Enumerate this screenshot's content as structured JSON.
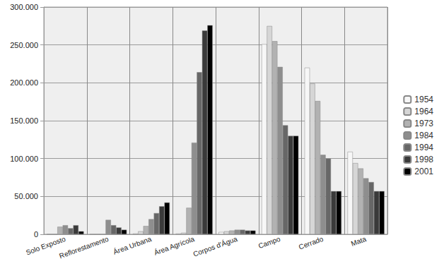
{
  "chart_data": {
    "type": "bar",
    "categories": [
      "Solo Exposto",
      "Reflorestamento",
      "Área Urbana",
      "Área Agrícola",
      "Corpos d'Água",
      "Campo",
      "Cerrado",
      "Mata"
    ],
    "series": [
      {
        "name": "1954",
        "color": "#f7f7f7",
        "values": [
          0,
          0,
          1000,
          1000,
          3000,
          251000,
          220000,
          109000
        ]
      },
      {
        "name": "1964",
        "color": "#d6d6d6",
        "values": [
          0,
          0,
          4000,
          2000,
          4000,
          275000,
          199000,
          94000
        ]
      },
      {
        "name": "1973",
        "color": "#b2b2b2",
        "values": [
          10000,
          0,
          11000,
          35000,
          5000,
          255000,
          176000,
          87000
        ]
      },
      {
        "name": "1984",
        "color": "#8e8e8e",
        "values": [
          12000,
          19000,
          20000,
          121000,
          6000,
          221000,
          105000,
          74000
        ]
      },
      {
        "name": "1994",
        "color": "#676767",
        "values": [
          8000,
          12000,
          28000,
          214000,
          6000,
          144000,
          100000,
          69000
        ]
      },
      {
        "name": "1998",
        "color": "#3a3a3a",
        "values": [
          12000,
          9000,
          37000,
          269000,
          5000,
          130000,
          57000,
          57000
        ]
      },
      {
        "name": "2001",
        "color": "#000000",
        "values": [
          4000,
          6000,
          42000,
          276000,
          5000,
          130000,
          57000,
          57000
        ]
      }
    ],
    "ylim": [
      0,
      300000
    ],
    "yticks": [
      0,
      {
        "value": 50000,
        "label": "50.000"
      },
      {
        "value": 100000,
        "label": "100.000"
      },
      {
        "value": 150000,
        "label": "150.000"
      },
      {
        "value": 200000,
        "label": "200.000"
      },
      {
        "value": 250000,
        "label": "250.000"
      },
      {
        "value": 300000,
        "label": "300.000"
      }
    ],
    "grid": true,
    "legend": "right"
  }
}
